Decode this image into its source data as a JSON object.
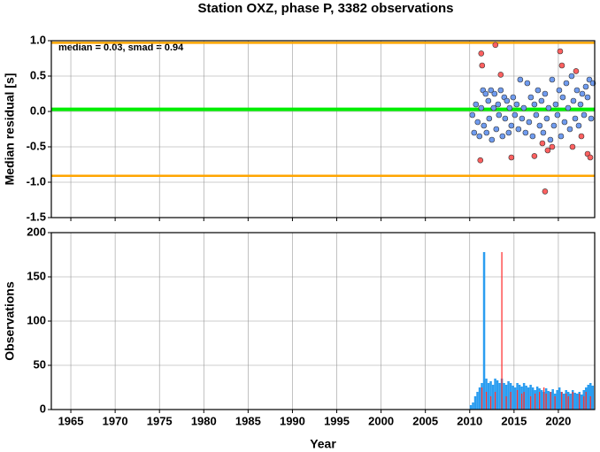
{
  "chart_data": [
    {
      "type": "scatter",
      "title": "Station OXZ, phase P, 3382 observations",
      "ylabel": "Median residual [s]",
      "annotation": "median = 0.03, smad = 0.94",
      "xlim": [
        1962.8,
        2024.1
      ],
      "xticks": [
        1965,
        1970,
        1975,
        1980,
        1985,
        1990,
        1995,
        2000,
        2005,
        2010,
        2015,
        2020
      ],
      "ylim": [
        -1.5,
        1.0
      ],
      "yticks": [
        -1.5,
        {
          "value": -1.0,
          "label": "-1.0"
        },
        -0.5,
        {
          "value": 0.0,
          "label": "0.0"
        },
        0.5,
        {
          "value": 1.0,
          "label": "1.0"
        }
      ],
      "grid": true,
      "hlines": [
        {
          "value": 0.03,
          "color": "#00ee00"
        },
        {
          "value": 0.97,
          "color": "#ffa500"
        },
        {
          "value": -0.91,
          "color": "#ffa500"
        }
      ],
      "series": [
        {
          "color": "#6f9bef",
          "x": [
            2010.3,
            2010.5,
            2010.7,
            2010.9,
            2011.1,
            2011.3,
            2011.5,
            2011.6,
            2011.8,
            2011.9,
            2012.1,
            2012.2,
            2012.4,
            2012.5,
            2012.7,
            2012.8,
            2013.0,
            2013.2,
            2013.3,
            2013.5,
            2013.7,
            2013.9,
            2014.0,
            2014.2,
            2014.4,
            2014.5,
            2014.7,
            2014.9,
            2015.1,
            2015.3,
            2015.5,
            2015.7,
            2015.9,
            2016.1,
            2016.3,
            2016.5,
            2016.7,
            2016.9,
            2017.1,
            2017.3,
            2017.5,
            2017.7,
            2017.9,
            2018.1,
            2018.3,
            2018.5,
            2018.7,
            2018.9,
            2019.1,
            2019.3,
            2019.5,
            2019.7,
            2019.9,
            2020.1,
            2020.3,
            2020.5,
            2020.7,
            2020.9,
            2021.1,
            2021.3,
            2021.5,
            2021.7,
            2021.9,
            2022.1,
            2022.3,
            2022.5,
            2022.7,
            2022.9,
            2023.1,
            2023.3,
            2023.5,
            2023.7,
            2023.9
          ],
          "values": [
            -0.05,
            -0.3,
            0.1,
            -0.15,
            -0.35,
            0.05,
            0.3,
            -0.2,
            0.25,
            -0.3,
            0.15,
            -0.1,
            0.3,
            -0.4,
            0.05,
            0.25,
            -0.25,
            0.1,
            -0.05,
            0.3,
            -0.35,
            0.2,
            -0.1,
            0.15,
            -0.3,
            0.05,
            -0.2,
            0.2,
            -0.05,
            0.1,
            -0.25,
            0.45,
            -0.1,
            0.05,
            -0.3,
            0.4,
            -0.15,
            0.2,
            -0.35,
            0.1,
            -0.05,
            0.3,
            -0.2,
            0.15,
            -0.3,
            0.25,
            -0.1,
            0.05,
            -0.4,
            0.45,
            -0.2,
            0.1,
            -0.05,
            0.3,
            -0.35,
            0.2,
            -0.15,
            0.4,
            0.05,
            -0.25,
            0.5,
            0.15,
            -0.1,
            0.3,
            -0.2,
            0.1,
            0.25,
            -0.05,
            0.35,
            0.2,
            0.45,
            -0.1,
            0.4
          ]
        },
        {
          "color": "#ff6060",
          "x": [
            2011.2,
            2011.3,
            2011.4,
            2012.9,
            2013.5,
            2014.7,
            2017.3,
            2018.2,
            2018.5,
            2018.8,
            2019.3,
            2020.2,
            2020.4,
            2021.6,
            2022.0,
            2022.6,
            2023.3,
            2023.6
          ],
          "values": [
            -0.69,
            0.82,
            0.65,
            0.94,
            0.52,
            -0.65,
            -0.63,
            -0.45,
            -1.13,
            -0.55,
            -0.5,
            0.85,
            0.65,
            -0.5,
            0.57,
            -0.35,
            -0.6,
            -0.65
          ]
        }
      ]
    },
    {
      "type": "histogram",
      "ylabel": "Observations",
      "xlabel": "Year",
      "xlim": [
        1962.8,
        2024.1
      ],
      "xticks": [
        1965,
        1970,
        1975,
        1980,
        1985,
        1990,
        1995,
        2000,
        2005,
        2010,
        2015,
        2020
      ],
      "ylim": [
        0,
        200
      ],
      "yticks": [
        0,
        50,
        100,
        150,
        200
      ],
      "grid": true,
      "bins": [
        2010,
        2010.25,
        2010.5,
        2010.75,
        2011,
        2011.25,
        2011.5,
        2011.75,
        2012,
        2012.25,
        2012.5,
        2012.75,
        2013,
        2013.25,
        2013.5,
        2013.75,
        2014,
        2014.25,
        2014.5,
        2014.75,
        2015,
        2015.25,
        2015.5,
        2015.75,
        2016,
        2016.25,
        2016.5,
        2016.75,
        2017,
        2017.25,
        2017.5,
        2017.75,
        2018,
        2018.25,
        2018.5,
        2018.75,
        2019,
        2019.25,
        2019.5,
        2019.75,
        2020,
        2020.25,
        2020.5,
        2020.75,
        2021,
        2021.25,
        2021.5,
        2021.75,
        2022,
        2022.25,
        2022.5,
        2022.75,
        2023,
        2023.25,
        2023.5,
        2023.75,
        2024
      ],
      "series": [
        {
          "color": "#2b9df0",
          "values": [
            5,
            8,
            15,
            20,
            25,
            30,
            178,
            35,
            30,
            32,
            28,
            35,
            33,
            30,
            35,
            30,
            28,
            32,
            30,
            27,
            25,
            30,
            28,
            26,
            30,
            27,
            25,
            28,
            25,
            22,
            26,
            24,
            22,
            20,
            24,
            21,
            20,
            23,
            18,
            22,
            25,
            20,
            18,
            22,
            20,
            18,
            22,
            19,
            18,
            20,
            17,
            22,
            25,
            28,
            30,
            27
          ]
        },
        {
          "color": "#ff3030",
          "values": [
            0,
            0,
            0,
            0,
            0,
            25,
            0,
            20,
            0,
            15,
            0,
            20,
            0,
            0,
            178,
            0,
            15,
            0,
            20,
            0,
            0,
            22,
            0,
            18,
            20,
            0,
            0,
            15,
            0,
            18,
            0,
            20,
            0,
            25,
            18,
            0,
            20,
            0,
            15,
            0,
            0,
            20,
            0,
            18,
            15,
            0,
            20,
            0,
            0,
            18,
            0,
            15,
            20,
            0,
            15,
            0
          ]
        }
      ]
    }
  ]
}
